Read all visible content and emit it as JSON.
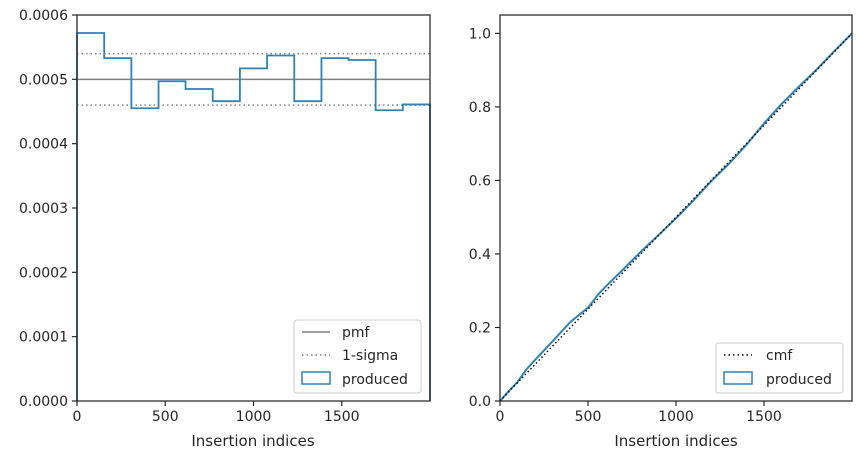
{
  "colors": {
    "produced": "#3182b5",
    "pmf": "#808080",
    "sigma": "#808080",
    "cmf": "#000000",
    "axis": "#262626",
    "legend_border": "#cccccc"
  },
  "chart_data": [
    {
      "type": "line",
      "subtype": "histogram-step",
      "title": "",
      "xlabel": "Insertion indices",
      "ylabel": "",
      "xlim": [
        0,
        2000
      ],
      "ylim": [
        0,
        0.0006
      ],
      "xticks": [
        0,
        500,
        1000,
        1500
      ],
      "xtick_labels": [
        "0",
        "500",
        "1000",
        "1500"
      ],
      "yticks": [
        0,
        0.0001,
        0.0002,
        0.0003,
        0.0004,
        0.0005,
        0.0006
      ],
      "ytick_labels": [
        "0.0000",
        "0.0001",
        "0.0002",
        "0.0003",
        "0.0004",
        "0.0005",
        "0.0006"
      ],
      "grid": false,
      "legend_position": "lower-right",
      "bin_edges": [
        0,
        154,
        308,
        462,
        615,
        769,
        923,
        1077,
        1231,
        1385,
        1538,
        1692,
        1846,
        2000
      ],
      "series": [
        {
          "name": "produced",
          "kind": "step",
          "values": [
            0.000572,
            0.000533,
            0.000455,
            0.000497,
            0.000485,
            0.000466,
            0.000517,
            0.000537,
            0.000466,
            0.000533,
            0.00053,
            0.000452,
            0.000461
          ]
        }
      ],
      "reference_lines": [
        {
          "name": "pmf",
          "style": "solid",
          "y": 0.0005
        },
        {
          "name": "1-sigma",
          "style": "dotted",
          "y": 0.00054
        },
        {
          "name": "",
          "style": "dotted",
          "y": 0.00046
        }
      ],
      "legend": [
        "pmf",
        "1-sigma",
        "produced"
      ]
    },
    {
      "type": "line",
      "subtype": "cumulative",
      "title": "",
      "xlabel": "Insertion indices",
      "ylabel": "",
      "xlim": [
        0,
        2000
      ],
      "ylim": [
        0,
        1.05
      ],
      "xticks": [
        0,
        500,
        1000,
        1500
      ],
      "xtick_labels": [
        "0",
        "500",
        "1000",
        "1500"
      ],
      "yticks": [
        0,
        0.2,
        0.4,
        0.6,
        0.8,
        1.0
      ],
      "ytick_labels": [
        "0.0",
        "0.2",
        "0.4",
        "0.6",
        "0.8",
        "1.0"
      ],
      "grid": false,
      "legend_position": "lower-right",
      "series": [
        {
          "name": "cmf",
          "style": "dotted",
          "x": [
            0,
            2000
          ],
          "y": [
            0,
            1.0
          ]
        },
        {
          "name": "produced",
          "style": "step",
          "x": [
            0,
            50,
            100,
            150,
            200,
            300,
            400,
            500,
            562,
            600,
            700,
            800,
            900,
            1000,
            1100,
            1200,
            1300,
            1400,
            1500,
            1600,
            1700,
            1800,
            1900,
            2000
          ],
          "y": [
            0,
            0.027,
            0.052,
            0.086,
            0.112,
            0.163,
            0.215,
            0.254,
            0.292,
            0.311,
            0.358,
            0.406,
            0.451,
            0.497,
            0.546,
            0.598,
            0.645,
            0.697,
            0.755,
            0.808,
            0.856,
            0.902,
            0.952,
            1.0
          ]
        }
      ],
      "legend": [
        "cmf",
        "produced"
      ]
    }
  ]
}
